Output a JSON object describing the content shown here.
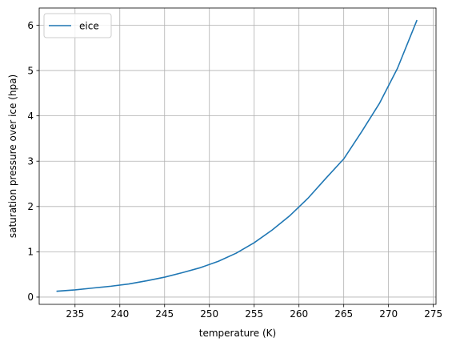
{
  "chart_data": {
    "type": "line",
    "title": "",
    "xlabel": "temperature (K)",
    "ylabel": "saturation pressure over ice (hpa)",
    "xlim": [
      231.0,
      275.3
    ],
    "ylim": [
      -0.16,
      6.38
    ],
    "xticks": [
      235,
      240,
      245,
      250,
      255,
      260,
      265,
      270,
      275
    ],
    "yticks": [
      0,
      1,
      2,
      3,
      4,
      5,
      6
    ],
    "grid": true,
    "legend": {
      "placement": "top-left"
    },
    "series": [
      {
        "name": "eice",
        "color": "#1f77b4",
        "x": [
          233,
          235,
          237,
          239,
          241,
          243,
          245,
          247,
          249,
          251,
          253,
          255,
          257,
          259,
          261,
          263,
          265,
          267,
          269,
          271,
          273.15
        ],
        "y": [
          0.13,
          0.16,
          0.2,
          0.24,
          0.29,
          0.36,
          0.44,
          0.54,
          0.65,
          0.79,
          0.97,
          1.2,
          1.48,
          1.8,
          2.18,
          2.62,
          3.05,
          3.65,
          4.28,
          5.05,
          6.1
        ]
      }
    ]
  }
}
